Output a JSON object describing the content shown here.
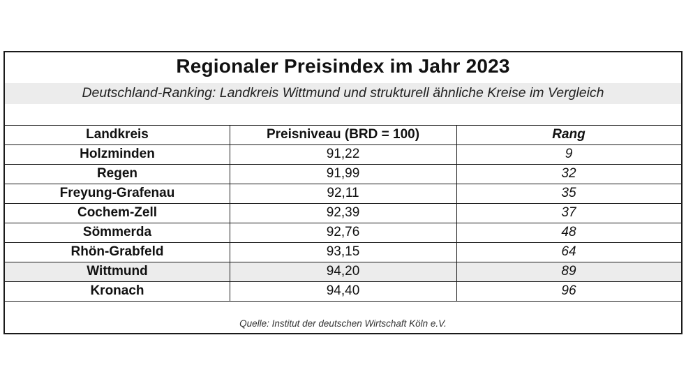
{
  "chart_data": {
    "type": "table",
    "title": "Regionaler Preisindex im Jahr 2023",
    "subtitle": "Deutschland-Ranking: Landkreis Wittmund und strukturell ähnliche Kreise im Vergleich",
    "columns": [
      "Landkreis",
      "Preisniveau (BRD = 100)",
      "Rang"
    ],
    "rows": [
      {
        "landkreis": "Holzminden",
        "preisniveau": "91,22",
        "rang": "9"
      },
      {
        "landkreis": "Regen",
        "preisniveau": "91,99",
        "rang": "32"
      },
      {
        "landkreis": "Freyung-Grafenau",
        "preisniveau": "92,11",
        "rang": "35"
      },
      {
        "landkreis": "Cochem-Zell",
        "preisniveau": "92,39",
        "rang": "37"
      },
      {
        "landkreis": "Sömmerda",
        "preisniveau": "92,76",
        "rang": "48"
      },
      {
        "landkreis": "Rhön-Grabfeld",
        "preisniveau": "93,15",
        "rang": "64"
      },
      {
        "landkreis": "Wittmund",
        "preisniveau": "94,20",
        "rang": "89",
        "highlighted": true
      },
      {
        "landkreis": "Kronach",
        "preisniveau": "94,40",
        "rang": "96"
      }
    ],
    "source": "Quelle: Institut der deutschen Wirtschaft Köln e.V.",
    "highlight_color": "#ececec"
  }
}
